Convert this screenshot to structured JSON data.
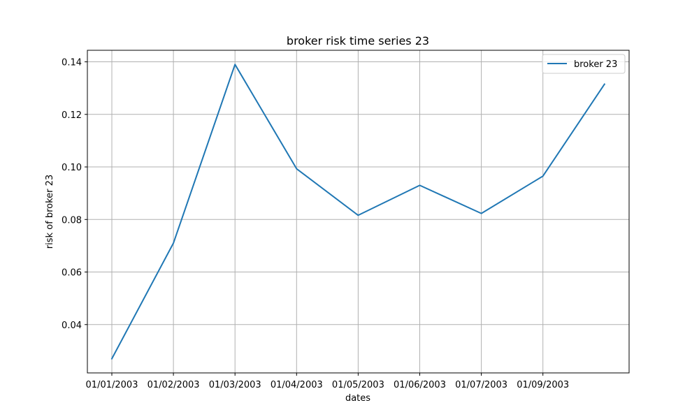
{
  "chart_data": {
    "type": "line",
    "title": "broker risk time series 23",
    "xlabel": "dates",
    "ylabel": "risk of broker 23",
    "x": [
      "01/01/2003",
      "01/02/2003",
      "01/03/2003",
      "01/04/2003",
      "01/05/2003",
      "01/06/2003",
      "01/07/2003",
      "01/09/2003",
      ""
    ],
    "x_tick_labels": [
      "01/01/2003",
      "01/02/2003",
      "01/03/2003",
      "01/04/2003",
      "01/05/2003",
      "01/06/2003",
      "01/07/2003",
      "01/09/2003"
    ],
    "series": [
      {
        "name": "broker 23",
        "color": "#1f77b4",
        "values": [
          0.027,
          0.071,
          0.139,
          0.0993,
          0.0816,
          0.093,
          0.0823,
          0.0965,
          0.1315
        ]
      }
    ],
    "y_ticks": [
      0.04,
      0.06,
      0.08,
      0.1,
      0.12,
      0.14
    ],
    "y_tick_labels": [
      "0.04",
      "0.06",
      "0.08",
      "0.10",
      "0.12",
      "0.14"
    ],
    "ylim": [
      0.0216,
      0.1444
    ],
    "grid": true,
    "legend": "top-right"
  }
}
